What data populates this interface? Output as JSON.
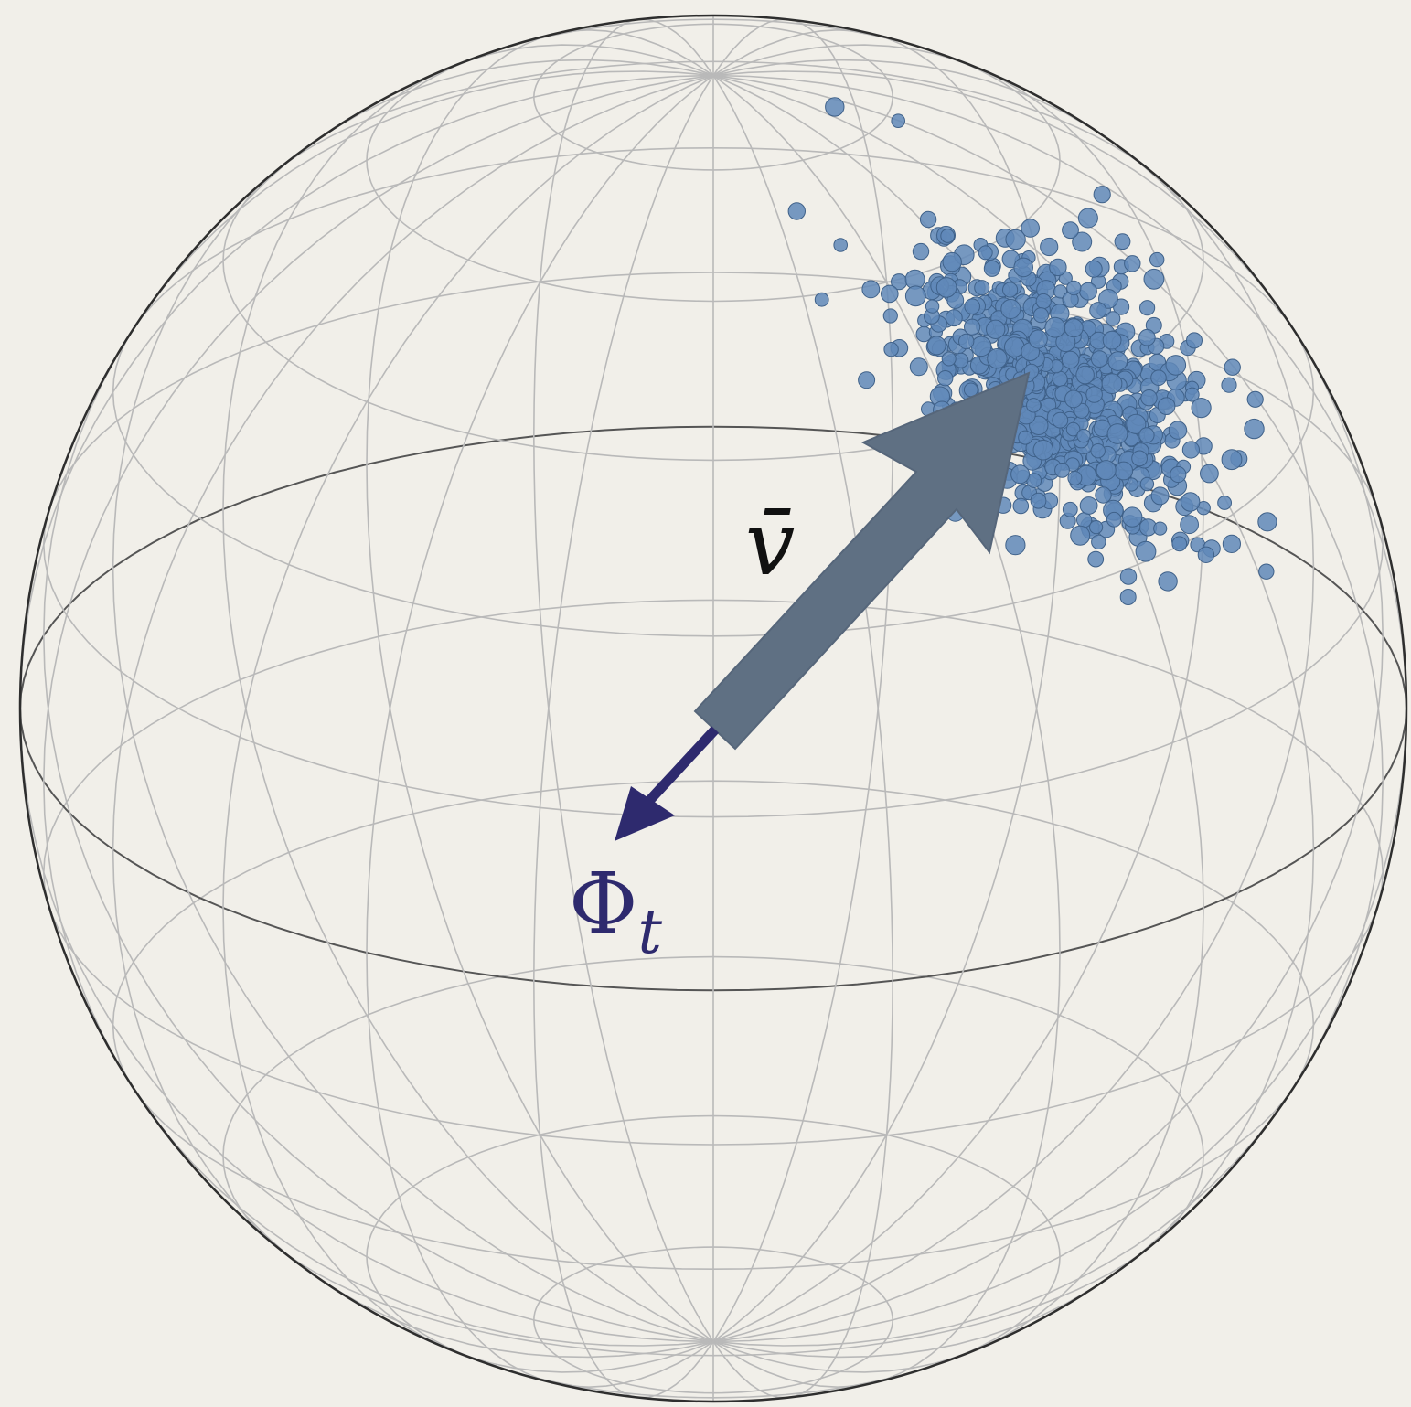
{
  "labels": {
    "mean_vector": "v̄",
    "flow": {
      "base": "Φ",
      "subscript": "t"
    }
  }
}
